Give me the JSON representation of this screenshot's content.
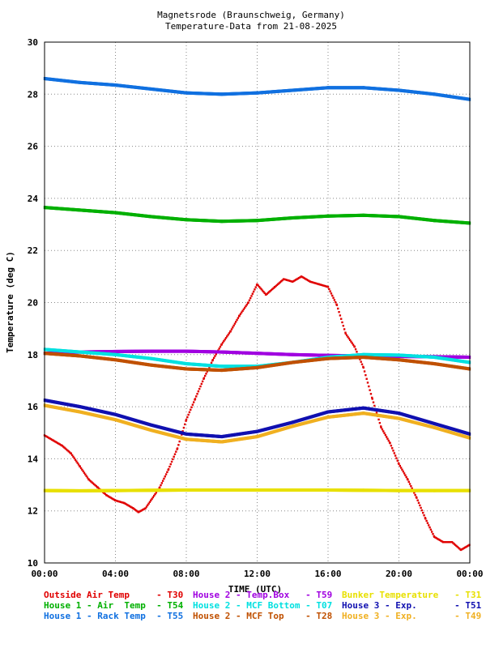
{
  "chart_data": {
    "type": "scatter",
    "title": "Magnetsrode (Braunschweig, Germany)",
    "subtitle": "Temperature-Data from 21-08-2025",
    "xlabel": "TIME (UTC)",
    "ylabel": "Temperature (deg C)",
    "xlim": [
      0,
      24
    ],
    "ylim": [
      10,
      30
    ],
    "x_tick_labels": [
      "00:00",
      "04:00",
      "08:00",
      "12:00",
      "16:00",
      "20:00",
      "00:00"
    ],
    "y_tick_labels": [
      "10",
      "12",
      "14",
      "16",
      "18",
      "20",
      "22",
      "24",
      "26",
      "28",
      "30"
    ],
    "grid": true,
    "legend_position": "bottom",
    "series": [
      {
        "name": "Outside Air Temp     - T30",
        "color": "#e00000",
        "x": [
          0,
          0.5,
          1,
          1.5,
          2,
          2.5,
          3,
          3.5,
          4,
          4.5,
          5,
          5.3,
          5.7,
          6,
          6.5,
          7,
          7.5,
          8,
          8.5,
          9,
          9.5,
          10,
          10.5,
          11,
          11.5,
          12,
          12.5,
          13,
          13.5,
          14,
          14.5,
          15,
          15.5,
          16,
          16.5,
          17,
          17.5,
          18,
          18.5,
          19,
          19.5,
          20,
          20.5,
          21,
          21.5,
          22,
          22.5,
          23,
          23.5,
          24
        ],
        "values": [
          14.9,
          14.7,
          14.5,
          14.2,
          13.7,
          13.2,
          12.9,
          12.6,
          12.4,
          12.3,
          12.1,
          11.95,
          12.1,
          12.4,
          12.9,
          13.6,
          14.4,
          15.5,
          16.3,
          17.1,
          17.8,
          18.4,
          18.9,
          19.5,
          20.0,
          20.7,
          20.3,
          20.6,
          20.9,
          20.8,
          21.0,
          20.8,
          20.7,
          20.6,
          19.9,
          18.8,
          18.3,
          17.5,
          16.3,
          15.2,
          14.6,
          13.8,
          13.2,
          12.5,
          11.7,
          11.0,
          10.8,
          10.8,
          10.5,
          10.7
        ]
      },
      {
        "name": "House 2 - Temp.Box   - T59",
        "color": "#a000e0",
        "x": [
          0,
          2,
          4,
          6,
          8,
          10,
          12,
          14,
          16,
          18,
          20,
          22,
          24
        ],
        "values": [
          18.05,
          18.1,
          18.12,
          18.13,
          18.13,
          18.1,
          18.05,
          18.0,
          17.97,
          17.95,
          17.93,
          17.92,
          17.9
        ]
      },
      {
        "name": "Bunker Temperature   - T31",
        "color": "#e8e000",
        "x": [
          0,
          2,
          4,
          6,
          8,
          10,
          12,
          14,
          16,
          18,
          20,
          22,
          24
        ],
        "values": [
          12.78,
          12.77,
          12.78,
          12.79,
          12.8,
          12.8,
          12.8,
          12.8,
          12.8,
          12.79,
          12.78,
          12.78,
          12.78
        ]
      },
      {
        "name": "House 1 - Air  Temp  - T54",
        "color": "#00b000",
        "x": [
          0,
          2,
          4,
          6,
          8,
          10,
          12,
          14,
          16,
          18,
          20,
          22,
          24
        ],
        "values": [
          23.65,
          23.55,
          23.45,
          23.3,
          23.18,
          23.12,
          23.15,
          23.25,
          23.32,
          23.35,
          23.3,
          23.15,
          23.05
        ]
      },
      {
        "name": "House 2 - MCF Bottom - T07",
        "color": "#00e0e0",
        "x": [
          0,
          2,
          4,
          6,
          8,
          10,
          12,
          14,
          16,
          18,
          20,
          22,
          24
        ],
        "values": [
          18.2,
          18.1,
          18.0,
          17.85,
          17.65,
          17.55,
          17.55,
          17.7,
          17.9,
          18.0,
          17.98,
          17.9,
          17.7
        ]
      },
      {
        "name": "House 3 - Exp.       - T51",
        "color": "#1010b0",
        "x": [
          0,
          2,
          4,
          6,
          8,
          10,
          12,
          14,
          16,
          18,
          20,
          22,
          24
        ],
        "values": [
          16.25,
          16.0,
          15.7,
          15.3,
          14.95,
          14.85,
          15.05,
          15.4,
          15.8,
          15.95,
          15.75,
          15.35,
          14.95
        ]
      },
      {
        "name": "House 1 - Rack Temp  - T55",
        "color": "#1070e0",
        "x": [
          0,
          2,
          4,
          6,
          8,
          10,
          12,
          14,
          16,
          18,
          20,
          22,
          24
        ],
        "values": [
          28.6,
          28.45,
          28.35,
          28.2,
          28.05,
          28.0,
          28.05,
          28.15,
          28.25,
          28.25,
          28.15,
          28.0,
          27.8
        ]
      },
      {
        "name": "House 2 - MCF Top    - T28",
        "color": "#c05000",
        "x": [
          0,
          2,
          4,
          6,
          8,
          10,
          12,
          14,
          16,
          18,
          20,
          22,
          24
        ],
        "values": [
          18.05,
          17.95,
          17.8,
          17.6,
          17.45,
          17.4,
          17.5,
          17.7,
          17.85,
          17.9,
          17.8,
          17.65,
          17.45
        ]
      },
      {
        "name": "House 3 - Exp.       - T49",
        "color": "#f0b020",
        "x": [
          0,
          2,
          4,
          6,
          8,
          10,
          12,
          14,
          16,
          18,
          20,
          22,
          24
        ],
        "values": [
          16.05,
          15.8,
          15.5,
          15.1,
          14.75,
          14.65,
          14.85,
          15.25,
          15.6,
          15.75,
          15.55,
          15.2,
          14.8
        ]
      }
    ]
  }
}
